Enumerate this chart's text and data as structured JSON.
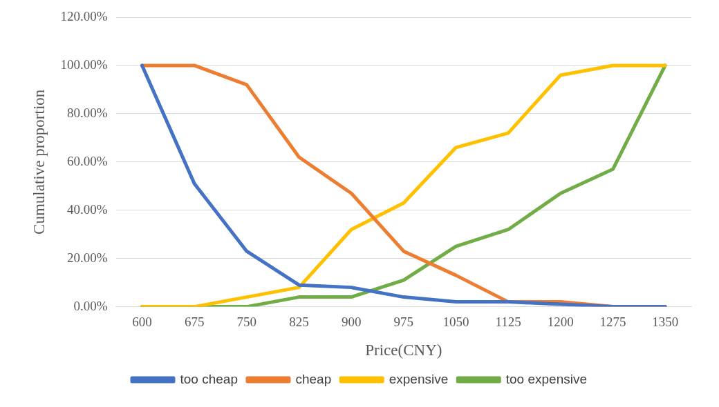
{
  "chart_data": {
    "type": "line",
    "xlabel": "Price(CNY)",
    "ylabel": "Cumulative proportion",
    "categories": [
      "600",
      "675",
      "750",
      "825",
      "900",
      "975",
      "1050",
      "1125",
      "1200",
      "1275",
      "1350"
    ],
    "series": [
      {
        "name": "too cheap",
        "color": "#4472c4",
        "values": [
          100,
          51,
          23,
          9,
          8,
          4,
          2,
          2,
          1,
          0,
          0
        ]
      },
      {
        "name": "cheap",
        "color": "#ed7d31",
        "values": [
          100,
          100,
          92,
          62,
          47,
          23,
          13,
          2,
          2,
          0,
          0
        ]
      },
      {
        "name": "expensive",
        "color": "#ffc000",
        "values": [
          0,
          0,
          4,
          8,
          32,
          43,
          66,
          72,
          96,
          100,
          100
        ]
      },
      {
        "name": "too expensive",
        "color": "#70ad47",
        "values": [
          0,
          0,
          0,
          4,
          4,
          11,
          25,
          32,
          47,
          57,
          100
        ]
      }
    ],
    "ylim": [
      0,
      120
    ],
    "yticks": [
      {
        "value": 0,
        "label": "0.00%"
      },
      {
        "value": 20,
        "label": "20.00%"
      },
      {
        "value": 40,
        "label": "40.00%"
      },
      {
        "value": 60,
        "label": "60.00%"
      },
      {
        "value": 80,
        "label": "80.00%"
      },
      {
        "value": 100,
        "label": "100.00%"
      },
      {
        "value": 120,
        "label": "120.00%"
      }
    ],
    "grid": "y",
    "legend": "bottom",
    "marker": "none",
    "line_style": "solid"
  }
}
